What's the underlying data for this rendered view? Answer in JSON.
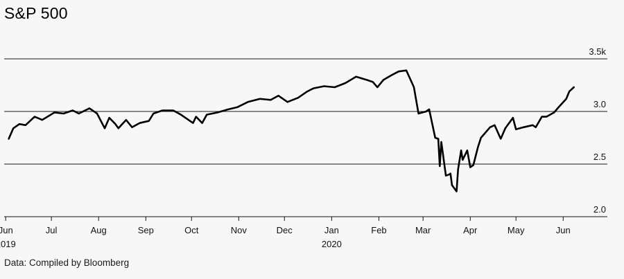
{
  "title": "S&P 500",
  "source": "Data: Compiled by Bloomberg",
  "chart_data": {
    "type": "line",
    "title": "S&P 500",
    "xlabel": "",
    "ylabel": "",
    "ylim": [
      2.0,
      3.5
    ],
    "y_ticks": [
      {
        "value": 3.5,
        "label": "3.5k"
      },
      {
        "value": 3.0,
        "label": "3.0"
      },
      {
        "value": 2.5,
        "label": "2.5"
      },
      {
        "value": 2.0,
        "label": "2.0"
      }
    ],
    "x_ticks": [
      {
        "date": "2019-06-01",
        "label": "Jun",
        "sublabel": "2019"
      },
      {
        "date": "2019-07-01",
        "label": "Jul",
        "sublabel": ""
      },
      {
        "date": "2019-08-01",
        "label": "Aug",
        "sublabel": ""
      },
      {
        "date": "2019-09-01",
        "label": "Sep",
        "sublabel": ""
      },
      {
        "date": "2019-10-01",
        "label": "Oct",
        "sublabel": ""
      },
      {
        "date": "2019-11-01",
        "label": "Nov",
        "sublabel": ""
      },
      {
        "date": "2019-12-01",
        "label": "Dec",
        "sublabel": ""
      },
      {
        "date": "2020-01-01",
        "label": "Jan",
        "sublabel": "2020"
      },
      {
        "date": "2020-02-01",
        "label": "Feb",
        "sublabel": ""
      },
      {
        "date": "2020-03-01",
        "label": "Mar",
        "sublabel": ""
      },
      {
        "date": "2020-04-01",
        "label": "Apr",
        "sublabel": ""
      },
      {
        "date": "2020-05-01",
        "label": "May",
        "sublabel": ""
      },
      {
        "date": "2020-06-01",
        "label": "Jun",
        "sublabel": ""
      }
    ],
    "xlim": [
      "2019-05-31",
      "2020-06-30"
    ],
    "grid": "horizontal",
    "series": [
      {
        "name": "",
        "color": "#000000",
        "points": [
          [
            "2019-06-03",
            2.74
          ],
          [
            "2019-06-06",
            2.84
          ],
          [
            "2019-06-10",
            2.88
          ],
          [
            "2019-06-14",
            2.87
          ],
          [
            "2019-06-20",
            2.95
          ],
          [
            "2019-06-25",
            2.92
          ],
          [
            "2019-07-03",
            2.99
          ],
          [
            "2019-07-09",
            2.98
          ],
          [
            "2019-07-15",
            3.01
          ],
          [
            "2019-07-19",
            2.98
          ],
          [
            "2019-07-26",
            3.03
          ],
          [
            "2019-07-31",
            2.98
          ],
          [
            "2019-08-05",
            2.84
          ],
          [
            "2019-08-08",
            2.94
          ],
          [
            "2019-08-12",
            2.88
          ],
          [
            "2019-08-14",
            2.84
          ],
          [
            "2019-08-19",
            2.92
          ],
          [
            "2019-08-23",
            2.85
          ],
          [
            "2019-08-28",
            2.89
          ],
          [
            "2019-09-03",
            2.91
          ],
          [
            "2019-09-06",
            2.98
          ],
          [
            "2019-09-12",
            3.01
          ],
          [
            "2019-09-19",
            3.01
          ],
          [
            "2019-09-24",
            2.97
          ],
          [
            "2019-10-02",
            2.89
          ],
          [
            "2019-10-04",
            2.95
          ],
          [
            "2019-10-08",
            2.89
          ],
          [
            "2019-10-11",
            2.97
          ],
          [
            "2019-10-18",
            2.99
          ],
          [
            "2019-10-25",
            3.02
          ],
          [
            "2019-10-31",
            3.04
          ],
          [
            "2019-11-07",
            3.09
          ],
          [
            "2019-11-15",
            3.12
          ],
          [
            "2019-11-22",
            3.11
          ],
          [
            "2019-11-27",
            3.15
          ],
          [
            "2019-12-03",
            3.09
          ],
          [
            "2019-12-10",
            3.13
          ],
          [
            "2019-12-16",
            3.19
          ],
          [
            "2019-12-20",
            3.22
          ],
          [
            "2019-12-27",
            3.24
          ],
          [
            "2020-01-03",
            3.23
          ],
          [
            "2020-01-10",
            3.27
          ],
          [
            "2020-01-17",
            3.33
          ],
          [
            "2020-01-24",
            3.3
          ],
          [
            "2020-01-28",
            3.28
          ],
          [
            "2020-01-31",
            3.23
          ],
          [
            "2020-02-04",
            3.3
          ],
          [
            "2020-02-10",
            3.35
          ],
          [
            "2020-02-14",
            3.38
          ],
          [
            "2020-02-19",
            3.39
          ],
          [
            "2020-02-24",
            3.23
          ],
          [
            "2020-02-27",
            2.98
          ],
          [
            "2020-03-03",
            3.0
          ],
          [
            "2020-03-05",
            3.02
          ],
          [
            "2020-03-09",
            2.75
          ],
          [
            "2020-03-11",
            2.74
          ],
          [
            "2020-03-12",
            2.48
          ],
          [
            "2020-03-13",
            2.71
          ],
          [
            "2020-03-16",
            2.39
          ],
          [
            "2020-03-18",
            2.4
          ],
          [
            "2020-03-19",
            2.41
          ],
          [
            "2020-03-20",
            2.3
          ],
          [
            "2020-03-23",
            2.24
          ],
          [
            "2020-03-24",
            2.45
          ],
          [
            "2020-03-26",
            2.63
          ],
          [
            "2020-03-27",
            2.54
          ],
          [
            "2020-03-30",
            2.63
          ],
          [
            "2020-04-01",
            2.47
          ],
          [
            "2020-04-03",
            2.49
          ],
          [
            "2020-04-06",
            2.66
          ],
          [
            "2020-04-08",
            2.75
          ],
          [
            "2020-04-14",
            2.85
          ],
          [
            "2020-04-17",
            2.87
          ],
          [
            "2020-04-21",
            2.74
          ],
          [
            "2020-04-24",
            2.84
          ],
          [
            "2020-04-29",
            2.94
          ],
          [
            "2020-05-01",
            2.83
          ],
          [
            "2020-05-06",
            2.85
          ],
          [
            "2020-05-12",
            2.87
          ],
          [
            "2020-05-14",
            2.85
          ],
          [
            "2020-05-18",
            2.95
          ],
          [
            "2020-05-21",
            2.95
          ],
          [
            "2020-05-26",
            2.99
          ],
          [
            "2020-05-29",
            3.04
          ],
          [
            "2020-06-03",
            3.12
          ],
          [
            "2020-06-05",
            3.19
          ],
          [
            "2020-06-08",
            3.23
          ]
        ]
      }
    ]
  }
}
